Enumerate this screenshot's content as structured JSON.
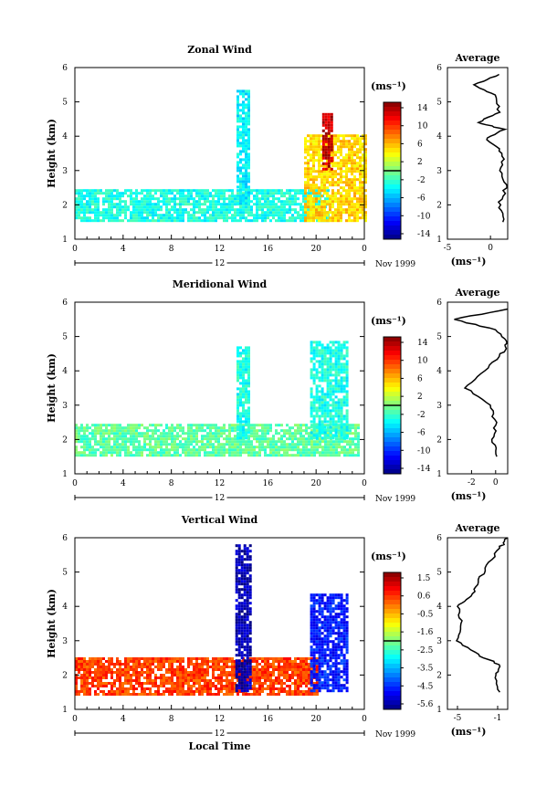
{
  "panels": [
    {
      "title": "Zonal Wind",
      "ylabel": "Height (km)",
      "x_ticks": [
        "0",
        "4",
        "8",
        "12",
        "16",
        "20",
        "0"
      ],
      "y_ticks": [
        "1",
        "2",
        "3",
        "4",
        "5",
        "6"
      ],
      "date_label": "12",
      "month_label": "Nov 1999",
      "cbar_unit": "(ms⁻¹)",
      "cbar_ticks": [
        "14",
        "10",
        "6",
        "2",
        "-2",
        "-6",
        "-10",
        "-14"
      ],
      "avg_title": "Average",
      "avg_x_ticks": [
        "-5",
        "0"
      ],
      "avg_y_ticks": [
        "1",
        "2",
        "3",
        "4",
        "5",
        "6"
      ],
      "avg_xlabel": "(ms⁻¹)"
    },
    {
      "title": "Meridional Wind",
      "ylabel": "Height (km)",
      "x_ticks": [
        "0",
        "4",
        "8",
        "12",
        "16",
        "20",
        "0"
      ],
      "y_ticks": [
        "1",
        "2",
        "3",
        "4",
        "5",
        "6"
      ],
      "date_label": "12",
      "month_label": "Nov 1999",
      "cbar_unit": "(ms⁻¹)",
      "cbar_ticks": [
        "14",
        "10",
        "6",
        "2",
        "-2",
        "-6",
        "-10",
        "-14"
      ],
      "avg_title": "Average",
      "avg_x_ticks": [
        "-2",
        "0"
      ],
      "avg_y_ticks": [
        "1",
        "2",
        "3",
        "4",
        "5",
        "6"
      ],
      "avg_xlabel": "(ms⁻¹)"
    },
    {
      "title": "Vertical Wind",
      "ylabel": "Height (km)",
      "xlabel": "Local Time",
      "x_ticks": [
        "0",
        "4",
        "8",
        "12",
        "16",
        "20",
        "0"
      ],
      "y_ticks": [
        "1",
        "2",
        "3",
        "4",
        "5",
        "6"
      ],
      "date_label": "12",
      "month_label": "Nov 1999",
      "cbar_unit": "(ms⁻¹)",
      "cbar_ticks": [
        "1.5",
        "0.6",
        "-0.5",
        "-1.6",
        "-2.5",
        "-3.5",
        "-4.5",
        "-5.6"
      ],
      "avg_title": "Average",
      "avg_x_ticks": [
        "-5",
        "-1"
      ],
      "avg_y_ticks": [
        "1",
        "2",
        "3",
        "4",
        "5",
        "6"
      ],
      "avg_xlabel": "(ms⁻¹)"
    }
  ],
  "chart_data": [
    {
      "type": "heatmap",
      "title": "Zonal Wind",
      "xlabel": "",
      "ylabel": "Height (km)",
      "xlim": [
        0,
        24
      ],
      "ylim": [
        1,
        6
      ],
      "colorbar_range": [
        -15,
        15
      ],
      "regions": [
        {
          "x": [
            0,
            21
          ],
          "y": [
            1.5,
            2.4
          ],
          "value": -3
        },
        {
          "x": [
            13.4,
            14.4
          ],
          "y": [
            2.0,
            5.3
          ],
          "value": -4
        },
        {
          "x": [
            19,
            24
          ],
          "y": [
            1.5,
            4.0
          ],
          "value": 5
        },
        {
          "x": [
            20.5,
            21.4
          ],
          "y": [
            3.0,
            4.6
          ],
          "value": 13
        }
      ],
      "average_profile": {
        "x_label": "(ms⁻¹)",
        "xlim": [
          -5,
          2
        ],
        "height": [
          1.5,
          2.0,
          2.5,
          3.0,
          3.5,
          3.9,
          4.2,
          4.4,
          4.7,
          5.2,
          5.5,
          5.8
        ],
        "value": [
          1.5,
          1.0,
          1.8,
          1.2,
          1.5,
          -0.5,
          1.5,
          -1.5,
          1.0,
          0.5,
          -2.0,
          1.0
        ]
      }
    },
    {
      "type": "heatmap",
      "title": "Meridional Wind",
      "xlabel": "",
      "ylabel": "Height (km)",
      "xlim": [
        0,
        24
      ],
      "ylim": [
        1,
        6
      ],
      "colorbar_range": [
        -15,
        15
      ],
      "regions": [
        {
          "x": [
            0,
            23.5
          ],
          "y": [
            1.5,
            2.4
          ],
          "value": -1
        },
        {
          "x": [
            13.4,
            14.4
          ],
          "y": [
            2.0,
            4.7
          ],
          "value": -3
        },
        {
          "x": [
            19.5,
            22.5
          ],
          "y": [
            2.0,
            4.8
          ],
          "value": -3
        }
      ],
      "average_profile": {
        "x_label": "(ms⁻¹)",
        "xlim": [
          -4,
          1
        ],
        "height": [
          1.5,
          2.0,
          2.5,
          3.0,
          3.5,
          4.0,
          4.5,
          4.8,
          5.2,
          5.5,
          5.8
        ],
        "value": [
          0.0,
          -0.2,
          0.0,
          -0.5,
          -2.5,
          -1.0,
          0.5,
          1.0,
          0.0,
          -3.5,
          1.0
        ]
      }
    },
    {
      "type": "heatmap",
      "title": "Vertical Wind",
      "xlabel": "Local Time",
      "ylabel": "Height (km)",
      "xlim": [
        0,
        24
      ],
      "ylim": [
        1,
        6
      ],
      "colorbar_range": [
        -6,
        2
      ],
      "regions": [
        {
          "x": [
            0,
            20
          ],
          "y": [
            1.4,
            2.5
          ],
          "value": 0.5
        },
        {
          "x": [
            13.3,
            14.5
          ],
          "y": [
            1.5,
            5.8
          ],
          "value": -5.6
        },
        {
          "x": [
            19.5,
            22.5
          ],
          "y": [
            1.5,
            4.3
          ],
          "value": -4.8
        }
      ],
      "average_profile": {
        "x_label": "(ms⁻¹)",
        "xlim": [
          -6,
          0
        ],
        "height": [
          1.5,
          2.0,
          2.3,
          2.6,
          3.0,
          3.5,
          4.0,
          4.3,
          4.7,
          5.2,
          5.7,
          6.0
        ],
        "value": [
          -0.8,
          -1.2,
          -0.8,
          -3.0,
          -5.0,
          -4.5,
          -5.0,
          -3.5,
          -3.0,
          -2.0,
          -0.8,
          0.0
        ]
      }
    }
  ]
}
